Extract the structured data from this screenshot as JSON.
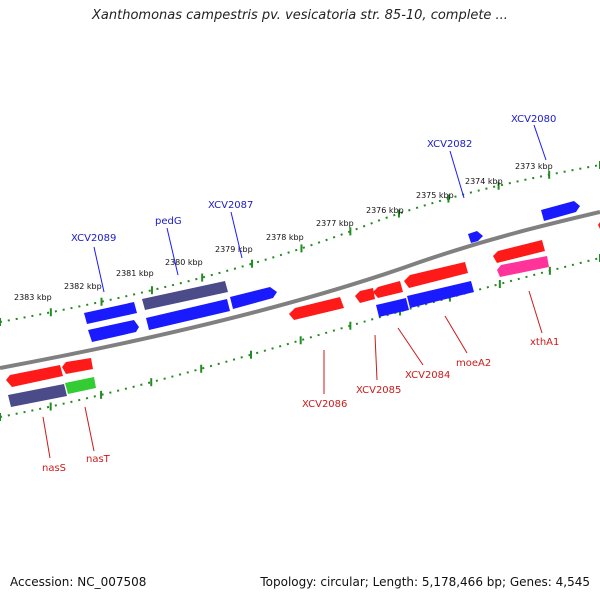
{
  "title": "Xanthomonas campestris pv. vesicatoria str. 85-10, complete ...",
  "footer": {
    "accession": "Accession: NC_007508",
    "summary": "Topology: circular; Length: 5,178,466 bp; Genes: 4,545"
  },
  "colors": {
    "forward_strand": "#1a1aff",
    "reverse_strand": "#ff1a1a",
    "purple_gene": "#4b4b8a",
    "green_gene": "#33cc33",
    "pink_gene": "#ff3399",
    "tick": "#228B22",
    "backbone": "#808080",
    "forward_label": "#1a1acc",
    "reverse_label": "#cc1a1a"
  },
  "ruler_labels": [
    "2383 kbp",
    "2382 kbp",
    "2381 kbp",
    "2380 kbp",
    "2379 kbp",
    "2378 kbp",
    "2377 kbp",
    "2376 kbp",
    "2375 kbp",
    "2374 kbp",
    "2373 kbp"
  ],
  "forward_gene_labels": [
    "XCV2089",
    "pedG",
    "XCV2087",
    "XCV2082",
    "XCV2080"
  ],
  "reverse_gene_labels": [
    "nasS",
    "nasT",
    "XCV2086",
    "XCV2085",
    "XCV2084",
    "moeA2",
    "xthA1"
  ]
}
